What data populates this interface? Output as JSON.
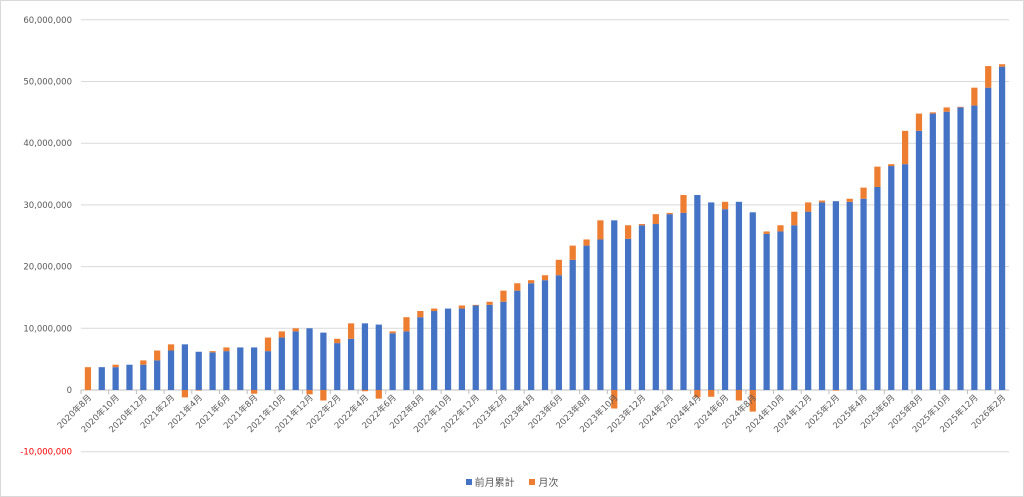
{
  "chart_data": {
    "type": "bar",
    "stacked": true,
    "title": "",
    "xlabel": "",
    "ylabel": "",
    "ylim": [
      -10000000,
      60000000
    ],
    "yticks": [
      60000000,
      50000000,
      40000000,
      30000000,
      20000000,
      10000000,
      0,
      -10000000
    ],
    "ytick_labels": [
      "60,000,000",
      "50,000,000",
      "40,000,000",
      "30,000,000",
      "20,000,000",
      "10,000,000",
      "0",
      "-10,000,000"
    ],
    "negative_tick_color": "#ff0000",
    "grid": true,
    "legend_position": "bottom",
    "categories": [
      "2020年8月",
      "2020年9月",
      "2020年10月",
      "2020年11月",
      "2020年12月",
      "2021年1月",
      "2021年2月",
      "2021年3月",
      "2021年4月",
      "2021年5月",
      "2021年6月",
      "2021年7月",
      "2021年8月",
      "2021年9月",
      "2021年10月",
      "2021年11月",
      "2021年12月",
      "2022年1月",
      "2022年2月",
      "2022年3月",
      "2022年4月",
      "2022年5月",
      "2022年6月",
      "2022年7月",
      "2022年8月",
      "2022年9月",
      "2022年10月",
      "2022年11月",
      "2022年12月",
      "2023年1月",
      "2023年2月",
      "2023年3月",
      "2023年4月",
      "2023年5月",
      "2023年6月",
      "2023年7月",
      "2023年8月",
      "2023年9月",
      "2023年10月",
      "2023年11月",
      "2023年12月",
      "2024年1月",
      "2024年2月",
      "2024年3月",
      "2024年4月",
      "2024年5月",
      "2024年6月",
      "2024年7月",
      "2024年8月",
      "2024年9月",
      "2024年10月",
      "2024年11月",
      "2024年12月",
      "2025年1月",
      "2025年2月",
      "2025年3月",
      "2025年4月",
      "2025年5月",
      "2025年6月",
      "2025年7月",
      "2025年8月",
      "2025年9月",
      "2025年10月",
      "2025年11月",
      "2025年12月",
      "2026年1月",
      "2026年2月"
    ],
    "xtick_labels": [
      "2020年8月",
      "2020年10月",
      "2020年12月",
      "2021年2月",
      "2021年4月",
      "2021年6月",
      "2021年8月",
      "2021年10月",
      "2021年12月",
      "2022年2月",
      "2022年4月",
      "2022年6月",
      "2022年8月",
      "2022年10月",
      "2022年12月",
      "2023年2月",
      "2023年4月",
      "2023年6月",
      "2023年8月",
      "2023年10月",
      "2023年12月",
      "2024年2月",
      "2024年4月",
      "2024年6月",
      "2024年8月",
      "2024年10月",
      "2024年12月",
      "2025年2月",
      "2025年4月",
      "2025年6月",
      "2025年8月",
      "2025年10月",
      "2025年12月",
      "2026年2月"
    ],
    "series": [
      {
        "name": "前月累計",
        "color": "#4472c4",
        "values": [
          0,
          3700000,
          3700000,
          4100000,
          4100000,
          4800000,
          6400000,
          7400000,
          6200000,
          6100000,
          6300000,
          6900000,
          6900000,
          6300000,
          8500000,
          9500000,
          10000000,
          9300000,
          7600000,
          8300000,
          10800000,
          10600000,
          9200000,
          9500000,
          11800000,
          12800000,
          13200000,
          13200000,
          13700000,
          13800000,
          14300000,
          16100000,
          17300000,
          17800000,
          18600000,
          21100000,
          23400000,
          24400000,
          27500000,
          24500000,
          26700000,
          26900000,
          28500000,
          28700000,
          31600000,
          30400000,
          29300000,
          30500000,
          28800000,
          25300000,
          25700000,
          26700000,
          28900000,
          30400000,
          30600000,
          30500000,
          31000000,
          32900000,
          36300000,
          36600000,
          42000000,
          44800000,
          45100000,
          45800000,
          46100000,
          49000000,
          52400000
        ],
        "_comment": "values visually estimated"
      },
      {
        "name": "月次",
        "color": "#ed7d31",
        "values": [
          3700000,
          0,
          400000,
          0,
          700000,
          1600000,
          1000000,
          -1200000,
          -100000,
          200000,
          600000,
          0,
          -600000,
          2200000,
          1000000,
          500000,
          -700000,
          -1700000,
          700000,
          2500000,
          -200000,
          -1400000,
          300000,
          2300000,
          1000000,
          400000,
          0,
          500000,
          100000,
          500000,
          1800000,
          1200000,
          500000,
          800000,
          2500000,
          2300000,
          1000000,
          3100000,
          -3000000,
          2200000,
          200000,
          1600000,
          200000,
          2900000,
          -1200000,
          -1100000,
          1200000,
          -1700000,
          -3500000,
          400000,
          1000000,
          2200000,
          1500000,
          300000,
          -100000,
          500000,
          1800000,
          3300000,
          300000,
          5400000,
          2800000,
          200000,
          700000,
          100000,
          2900000,
          3500000,
          400000
        ]
      }
    ]
  },
  "legend": {
    "items": [
      {
        "label": "前月累計",
        "color": "#4472c4"
      },
      {
        "label": "月次",
        "color": "#ed7d31"
      }
    ]
  }
}
